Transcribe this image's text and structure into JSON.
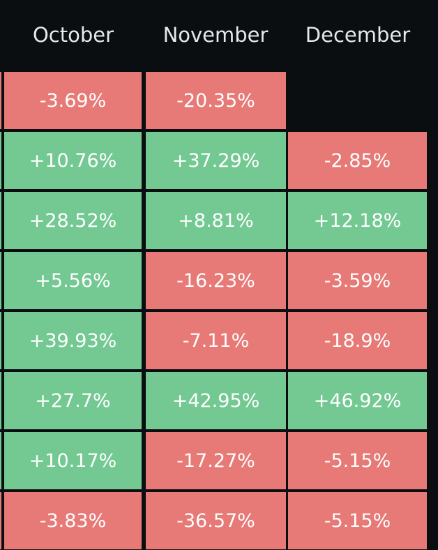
{
  "colors": {
    "background": "#0b0e11",
    "positive": "#74c993",
    "negative": "#e77a76",
    "header_text": "#e6e8ea",
    "cell_text": "#ffffff"
  },
  "header": {
    "columns": [
      "October",
      "November",
      "December"
    ]
  },
  "rows": [
    [
      "-3.69%",
      "-20.35%",
      ""
    ],
    [
      "+10.76%",
      "+37.29%",
      "-2.85%"
    ],
    [
      "+28.52%",
      "+8.81%",
      "+12.18%"
    ],
    [
      "+5.56%",
      "-16.23%",
      "-3.59%"
    ],
    [
      "+39.93%",
      "-7.11%",
      "-18.9%"
    ],
    [
      "+27.7%",
      "+42.95%",
      "+46.92%"
    ],
    [
      "+10.17%",
      "-17.27%",
      "-5.15%"
    ],
    [
      "-3.83%",
      "-36.57%",
      "-5.15%"
    ]
  ]
}
